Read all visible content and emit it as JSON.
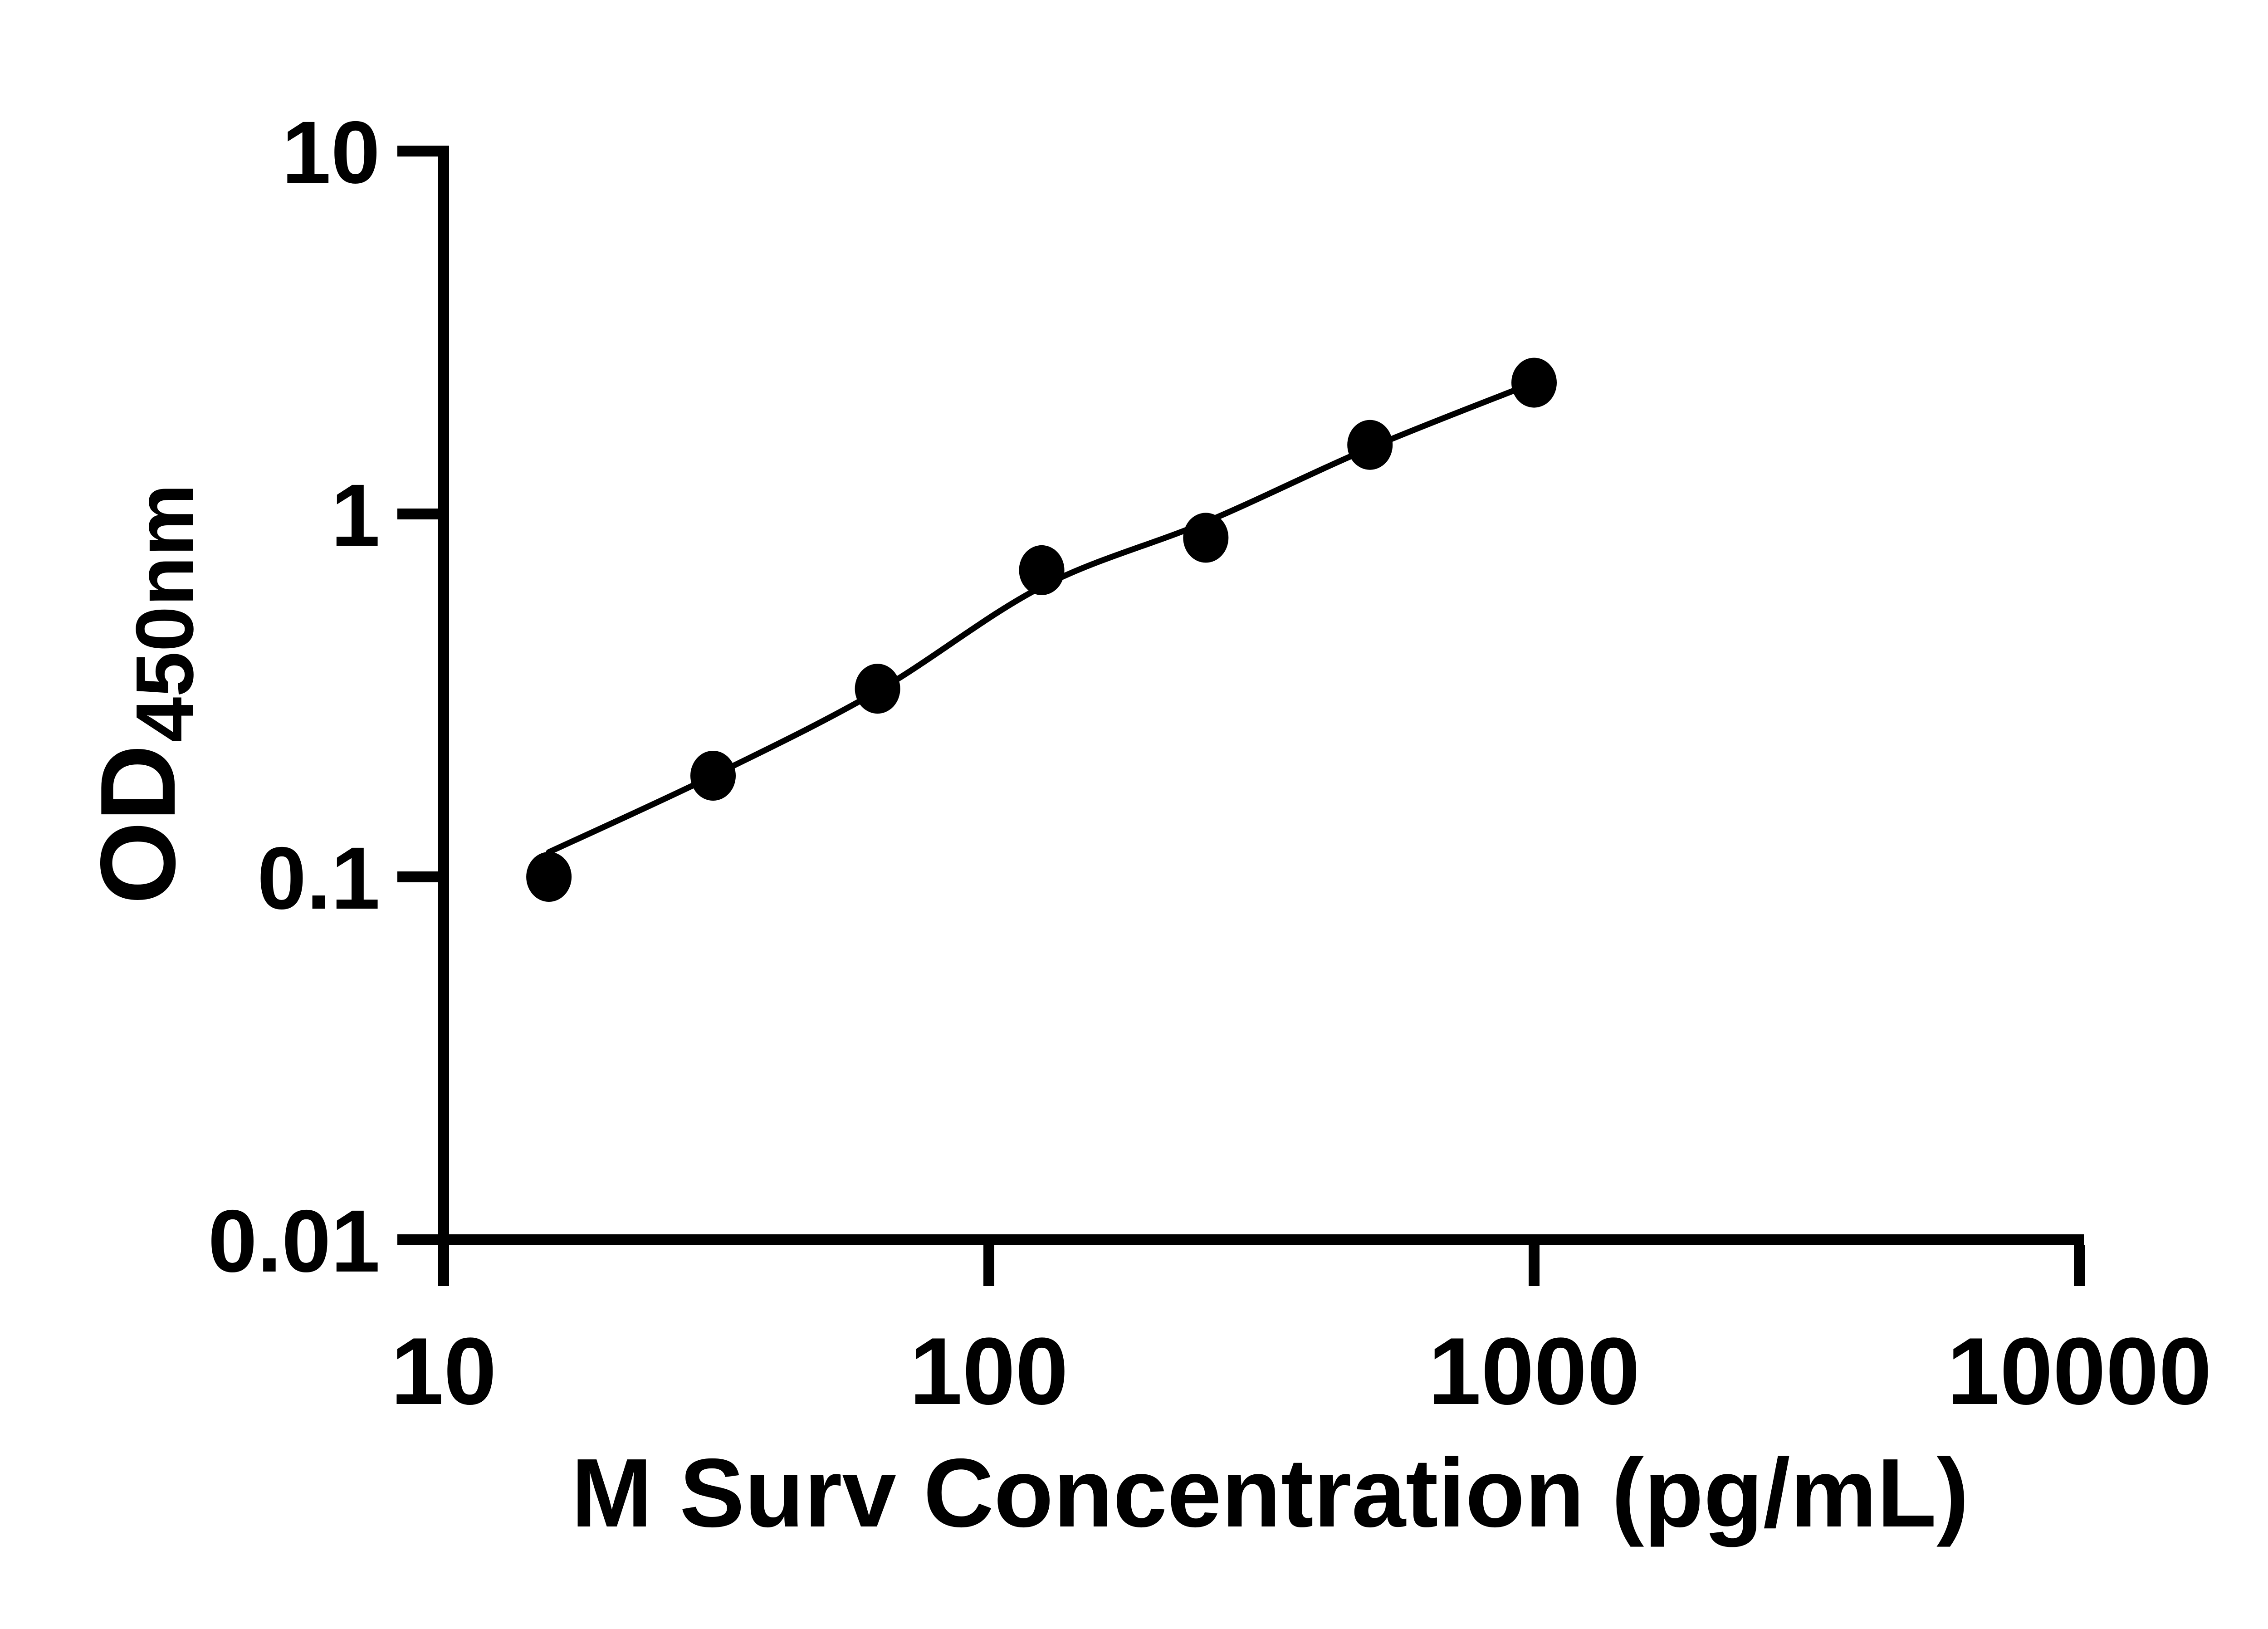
{
  "figure": {
    "background_color": "#ffffff",
    "ink_color": "#000000"
  },
  "chart_data": {
    "type": "scatter",
    "title": "",
    "xlabel": "M Surv Concentration (pg/mL)",
    "ylabel_main": "OD",
    "ylabel_subscript": "450nm",
    "x_scale": "log10",
    "y_scale": "log10",
    "xlim": [
      10,
      10000
    ],
    "ylim": [
      0.01,
      10
    ],
    "x_ticks": {
      "values": [
        10,
        100,
        1000,
        10000
      ],
      "labels": [
        "10",
        "100",
        "1000",
        "10000"
      ]
    },
    "y_ticks": {
      "values": [
        10,
        1,
        0.1,
        0.01
      ],
      "labels": [
        "10",
        "1",
        "0.1",
        "0.01"
      ]
    },
    "grid": false,
    "legend": null,
    "series": [
      {
        "name": "standard-points",
        "marker": "filled-circle",
        "color": "#000000",
        "points": [
          {
            "x": 15.6,
            "y": 0.1
          },
          {
            "x": 31.2,
            "y": 0.19
          },
          {
            "x": 62.5,
            "y": 0.33
          },
          {
            "x": 125,
            "y": 0.7
          },
          {
            "x": 250,
            "y": 0.86
          },
          {
            "x": 500,
            "y": 1.55
          },
          {
            "x": 1000,
            "y": 2.3
          }
        ]
      }
    ],
    "fit_line": {
      "name": "fitted-standard-curve",
      "color": "#000000",
      "trace": [
        {
          "x": 15.6,
          "y": 0.117
        },
        {
          "x": 31.2,
          "y": 0.19
        },
        {
          "x": 62.5,
          "y": 0.325
        },
        {
          "x": 125,
          "y": 0.63
        },
        {
          "x": 250,
          "y": 0.95
        },
        {
          "x": 500,
          "y": 1.52
        },
        {
          "x": 1000,
          "y": 2.3
        }
      ]
    }
  }
}
